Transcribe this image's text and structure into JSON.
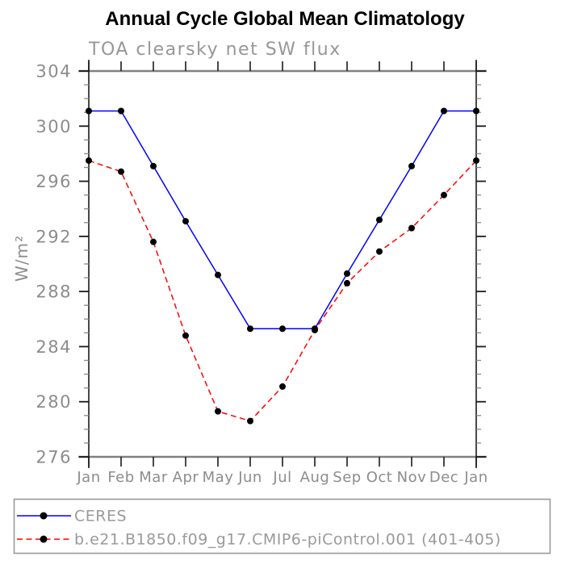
{
  "chart_data": {
    "type": "line",
    "title": "Annual Cycle Global Mean Climatology",
    "subtitle": "TOA clearsky net SW flux",
    "xlabel": "",
    "ylabel": "W/m²",
    "categories": [
      "Jan",
      "Feb",
      "Mar",
      "Apr",
      "May",
      "Jun",
      "Jul",
      "Aug",
      "Sep",
      "Oct",
      "Nov",
      "Dec",
      "Jan"
    ],
    "ylim": [
      276,
      304
    ],
    "ytick_major_step": 4,
    "ytick_minor_step": 1,
    "grid": false,
    "legend_position": "bottom",
    "series": [
      {
        "name": "CERES",
        "color": "#0000ff",
        "line_style": "solid",
        "marker": "filled-circle",
        "marker_color": "#000000",
        "values": [
          301.1,
          301.1,
          297.1,
          293.1,
          289.2,
          285.3,
          285.3,
          285.3,
          289.3,
          293.2,
          297.1,
          301.1,
          301.1
        ]
      },
      {
        "name": "b.e21.B1850.f09_g17.CMIP6-piControl.001 (401-405)",
        "color": "#ff0000",
        "line_style": "dashed",
        "marker": "filled-circle",
        "marker_color": "#000000",
        "values": [
          297.5,
          296.7,
          291.6,
          284.8,
          279.3,
          278.6,
          281.1,
          285.2,
          288.6,
          290.9,
          292.6,
          295.0,
          297.5
        ]
      }
    ]
  }
}
